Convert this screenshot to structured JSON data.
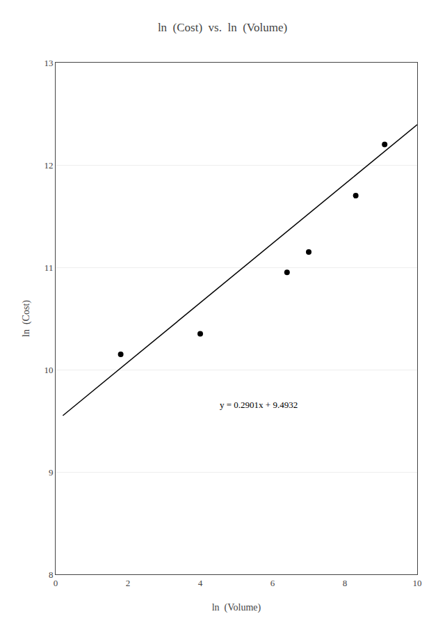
{
  "chart_data": {
    "type": "scatter",
    "title": "ln  (Cost)  vs.  ln  (Volume)",
    "x_label": "ln  (Volume)",
    "y_label": "ln  (Cost)",
    "xlim": [
      0,
      10
    ],
    "ylim": [
      8,
      13
    ],
    "xticks": [
      0,
      2,
      4,
      6,
      8,
      10
    ],
    "yticks": [
      8,
      9,
      10,
      11,
      12,
      13
    ],
    "grid": "y",
    "series": [
      {
        "type": "scatter",
        "color": "#000000",
        "marker": "circle",
        "x": [
          1.8,
          4.0,
          6.4,
          7.0,
          8.3,
          9.1
        ],
        "values": [
          10.15,
          10.35,
          10.95,
          11.15,
          11.7,
          12.2
        ]
      },
      {
        "type": "line",
        "color": "#000000",
        "line_style": "solid",
        "x": [
          0.2,
          10.0
        ],
        "values": [
          9.55122,
          12.3942
        ]
      }
    ],
    "annotations": [
      {
        "text": "y = 0.2901x + 9.4932",
        "x": 4.5,
        "y": 9.72
      }
    ]
  }
}
